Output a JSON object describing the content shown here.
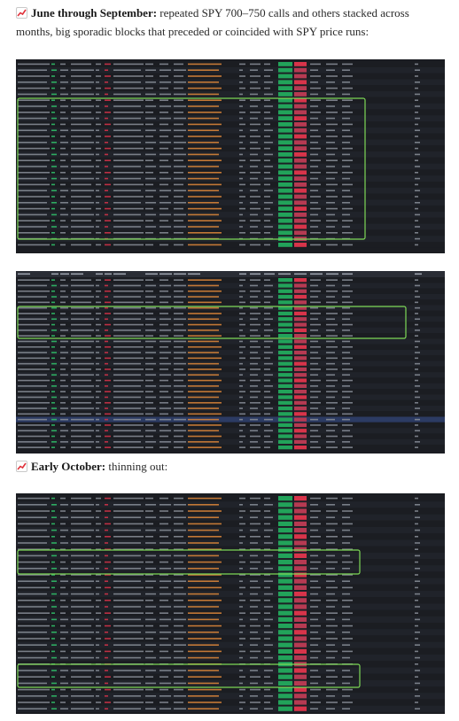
{
  "paragraph_1": {
    "icon": "chart-increasing-icon",
    "bold": "June through September:",
    "text": " repeated SPY 700–750 calls and others stacked across months, big sporadic blocks that preceded or coincided with SPY price runs:"
  },
  "paragraph_2": {
    "icon": "chart-increasing-icon",
    "bold": "Early October:",
    "text": " thinning out:"
  },
  "colors": {
    "table_bg": "#1b1d22",
    "row_alt": "#20232a",
    "highlight_row": "#2c3b63",
    "outline_green": "#7ed957",
    "green_cell": "#22a35a",
    "red_cell": "#d8344a",
    "text_dim": "#8a8f99",
    "ticker_green": "#31c46b",
    "badge_orange": "#e0883a"
  },
  "screenshots": [
    {
      "name": "flow-table-june-september"
    },
    {
      "name": "flow-table-september-october"
    },
    {
      "name": "flow-table-early-october"
    }
  ]
}
